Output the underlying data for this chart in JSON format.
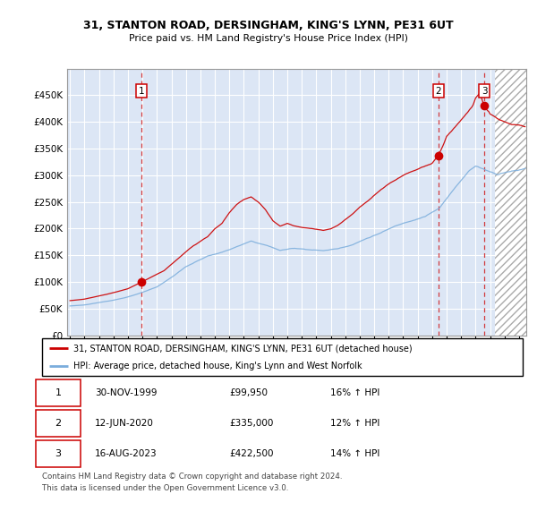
{
  "title_line1": "31, STANTON ROAD, DERSINGHAM, KING'S LYNN, PE31 6UT",
  "title_line2": "Price paid vs. HM Land Registry's House Price Index (HPI)",
  "plot_bg_color": "#dce6f5",
  "grid_color": "#ffffff",
  "red_line_color": "#cc0000",
  "blue_line_color": "#7aaddc",
  "transactions": [
    {
      "label": "1",
      "date": "30-NOV-1999",
      "price": 99950,
      "x_year": 1999.917,
      "pct": "16%",
      "direction": "↑"
    },
    {
      "label": "2",
      "date": "12-JUN-2020",
      "price": 335000,
      "x_year": 2020.44,
      "pct": "12%",
      "direction": "↑"
    },
    {
      "label": "3",
      "date": "16-AUG-2023",
      "price": 422500,
      "x_year": 2023.62,
      "pct": "14%",
      "direction": "↑"
    }
  ],
  "legend_red": "31, STANTON ROAD, DERSINGHAM, KING'S LYNN, PE31 6UT (detached house)",
  "legend_blue": "HPI: Average price, detached house, King's Lynn and West Norfolk",
  "footnote_line1": "Contains HM Land Registry data © Crown copyright and database right 2024.",
  "footnote_line2": "This data is licensed under the Open Government Licence v3.0.",
  "ylim": [
    0,
    500000
  ],
  "yticks": [
    0,
    50000,
    100000,
    150000,
    200000,
    250000,
    300000,
    350000,
    400000,
    450000
  ],
  "xmin": 1994.8,
  "xmax": 2026.5,
  "hatch_start": 2024.33
}
